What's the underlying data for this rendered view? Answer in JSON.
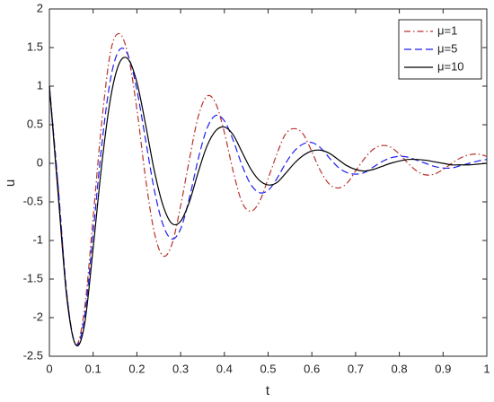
{
  "chart_data": {
    "type": "line",
    "xlabel": "t",
    "ylabel": "u",
    "x": [
      0,
      0.02,
      0.04,
      0.06,
      0.08,
      0.1,
      0.12,
      0.14,
      0.16,
      0.18,
      0.2,
      0.22,
      0.24,
      0.26,
      0.28,
      0.3,
      0.32,
      0.34,
      0.36,
      0.38,
      0.4,
      0.42,
      0.44,
      0.46,
      0.48,
      0.5,
      0.52,
      0.54,
      0.56,
      0.58,
      0.6,
      0.62,
      0.64,
      0.66,
      0.68,
      0.7,
      0.72,
      0.74,
      0.76,
      0.78,
      0.8,
      0.82,
      0.84,
      0.86,
      0.88,
      0.9,
      0.92,
      0.94,
      0.96,
      0.98,
      1
    ],
    "series": [
      {
        "name": "μ=1",
        "color": "#b8322a",
        "dash": "7,3,1.5,3",
        "values": [
          1.0,
          -0.3,
          -1.7,
          -2.35,
          -1.9,
          -0.7,
          0.55,
          1.45,
          1.68,
          1.4,
          0.7,
          -0.2,
          -0.9,
          -1.2,
          -1.05,
          -0.55,
          0.05,
          0.6,
          0.87,
          0.78,
          0.4,
          -0.1,
          -0.5,
          -0.62,
          -0.5,
          -0.2,
          0.12,
          0.38,
          0.45,
          0.38,
          0.15,
          -0.1,
          -0.27,
          -0.32,
          -0.26,
          -0.1,
          0.06,
          0.18,
          0.23,
          0.21,
          0.12,
          0.0,
          -0.1,
          -0.15,
          -0.14,
          -0.08,
          0.0,
          0.07,
          0.11,
          0.12,
          0.09
        ]
      },
      {
        "name": "μ=5",
        "color": "#1f1fef",
        "dash": "8,4",
        "values": [
          1.0,
          -0.3,
          -1.7,
          -2.35,
          -2.0,
          -0.9,
          0.25,
          1.1,
          1.47,
          1.4,
          0.95,
          0.3,
          -0.35,
          -0.8,
          -0.98,
          -0.85,
          -0.45,
          0.05,
          0.45,
          0.62,
          0.55,
          0.3,
          -0.02,
          -0.27,
          -0.38,
          -0.35,
          -0.2,
          0.0,
          0.16,
          0.25,
          0.27,
          0.2,
          0.07,
          -0.05,
          -0.12,
          -0.14,
          -0.12,
          -0.05,
          0.02,
          0.07,
          0.09,
          0.08,
          0.04,
          0.0,
          -0.04,
          -0.06,
          -0.06,
          -0.03,
          0.0,
          0.03,
          0.05
        ]
      },
      {
        "name": "μ=10",
        "color": "#000000",
        "dash": "none",
        "values": [
          1.0,
          -0.4,
          -1.75,
          -2.35,
          -2.1,
          -1.1,
          0.0,
          0.85,
          1.3,
          1.35,
          1.05,
          0.5,
          -0.1,
          -0.55,
          -0.78,
          -0.75,
          -0.5,
          -0.12,
          0.22,
          0.42,
          0.47,
          0.37,
          0.15,
          -0.07,
          -0.22,
          -0.28,
          -0.25,
          -0.13,
          0.0,
          0.1,
          0.16,
          0.17,
          0.13,
          0.05,
          -0.03,
          -0.08,
          -0.1,
          -0.08,
          -0.04,
          0.0,
          0.03,
          0.05,
          0.05,
          0.04,
          0.02,
          0.0,
          -0.02,
          -0.02,
          -0.02,
          -0.01,
          0.0
        ]
      }
    ],
    "xlim": [
      0,
      1
    ],
    "xticks": [
      0,
      0.1,
      0.2,
      0.3,
      0.4,
      0.5,
      0.6,
      0.7,
      0.8,
      0.9,
      1
    ],
    "ylim": [
      -2.5,
      2
    ],
    "yticks": [
      -2.5,
      -2,
      -1.5,
      -1,
      -0.5,
      0,
      0.5,
      1,
      1.5,
      2
    ],
    "grid": false,
    "legend": "top-right"
  }
}
